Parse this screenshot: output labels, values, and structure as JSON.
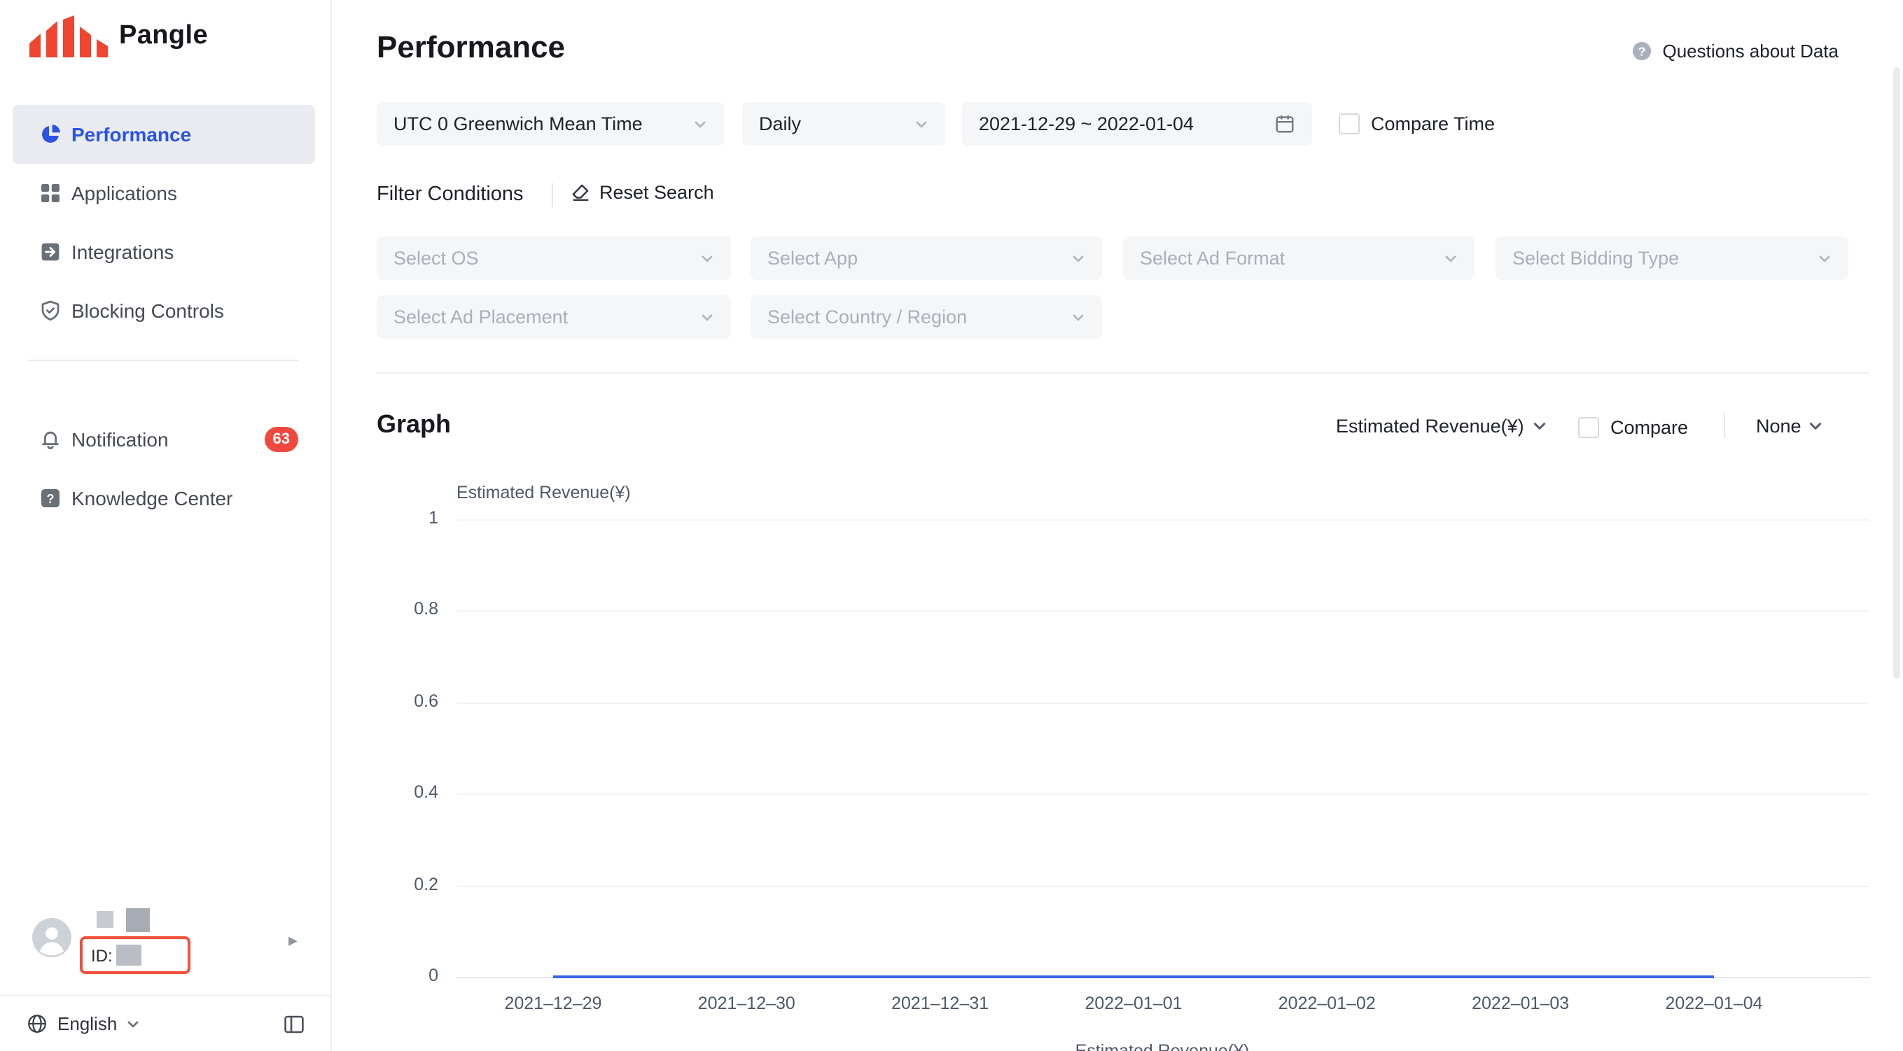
{
  "brand": {
    "name": "Pangle"
  },
  "sidebar": {
    "items": [
      {
        "label": "Performance",
        "icon": "pie-chart-icon",
        "active": true
      },
      {
        "label": "Applications",
        "icon": "apps-grid-icon",
        "active": false
      },
      {
        "label": "Integrations",
        "icon": "integration-icon",
        "active": false
      },
      {
        "label": "Blocking Controls",
        "icon": "shield-icon",
        "active": false
      }
    ],
    "secondary": [
      {
        "label": "Notification",
        "icon": "bell-icon",
        "badge": "63"
      },
      {
        "label": "Knowledge Center",
        "icon": "question-square-icon",
        "badge": ""
      }
    ],
    "user": {
      "id_prefix": "ID:",
      "expand_arrow": "▸"
    },
    "language": {
      "label": "English"
    }
  },
  "header": {
    "title": "Performance",
    "help": "Questions about Data"
  },
  "filters": {
    "timezone": {
      "value": "UTC 0 Greenwich Mean Time"
    },
    "granularity": {
      "value": "Daily"
    },
    "date_range": {
      "value": "2021-12-29 ~ 2022-01-04"
    },
    "compare_time": {
      "label": "Compare Time",
      "checked": false
    },
    "conditions_title": "Filter Conditions",
    "reset_label": "Reset Search",
    "selects": [
      {
        "placeholder": "Select OS"
      },
      {
        "placeholder": "Select App"
      },
      {
        "placeholder": "Select Ad Format"
      },
      {
        "placeholder": "Select Bidding Type"
      },
      {
        "placeholder": "Select Ad Placement"
      },
      {
        "placeholder": "Select Country / Region"
      }
    ]
  },
  "graph": {
    "title": "Graph",
    "metric": "Estimated Revenue(¥)",
    "compare": {
      "label": "Compare",
      "checked": false
    },
    "dimension": "None"
  },
  "chart_data": {
    "type": "line",
    "title": "",
    "xlabel": "",
    "ylabel": "Estimated Revenue(¥)",
    "x": [
      "2021–12–29",
      "2021–12–30",
      "2021–12–31",
      "2022–01–01",
      "2022–01–02",
      "2022–01–03",
      "2022–01–04"
    ],
    "series": [
      {
        "name": "Estimated Revenue(¥)",
        "values": [
          0,
          0,
          0,
          0,
          0,
          0,
          0
        ]
      }
    ],
    "ylim": [
      0,
      1
    ],
    "yticks": [
      0,
      0.2,
      0.4,
      0.6,
      0.8,
      1
    ],
    "grid": true,
    "legend_position": "bottom",
    "colors": {
      "line": "#3D63E6",
      "grid": "#F2F3F5",
      "axis": "#E5E6EB"
    }
  },
  "colors": {
    "accent": "#2B54E2",
    "badge": "#F0483F",
    "highlight_box": "#F2503A",
    "logo_red": "#F0452F"
  }
}
